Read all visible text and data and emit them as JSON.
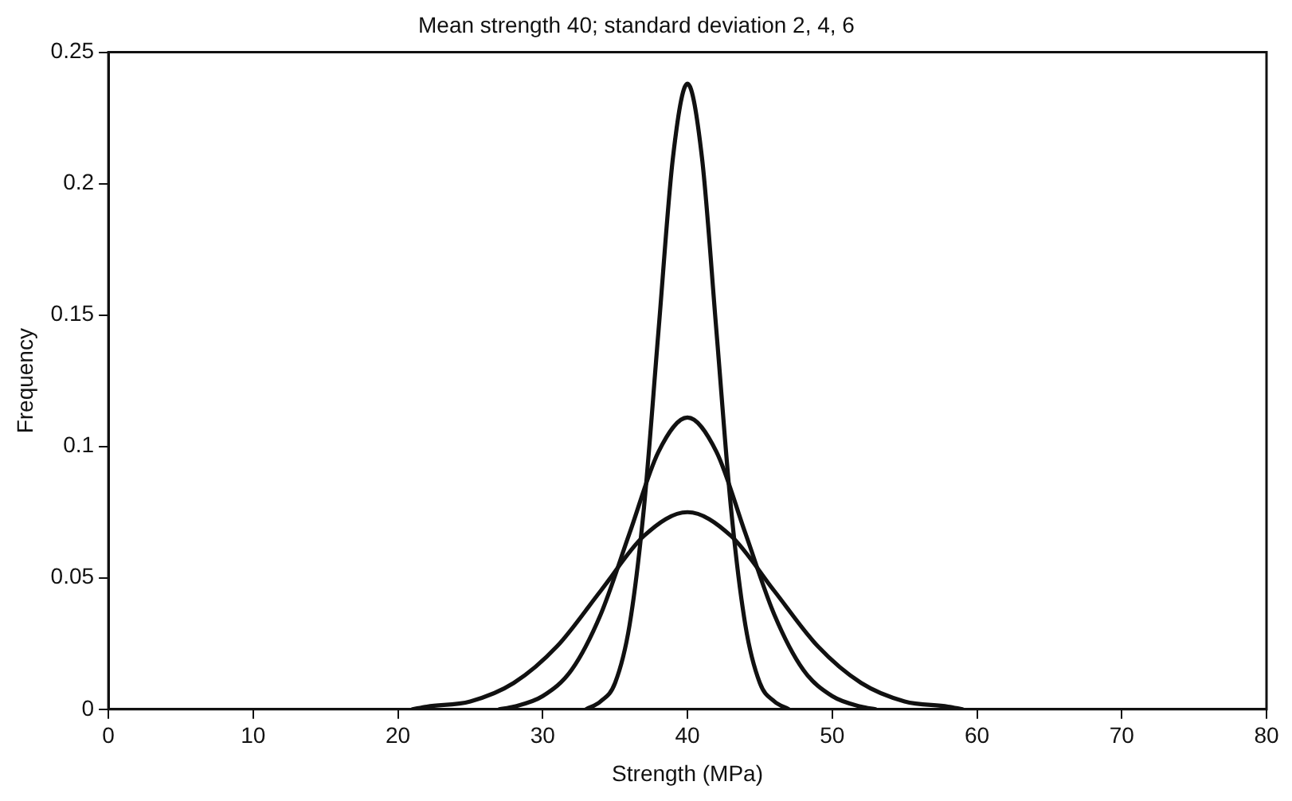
{
  "chart_data": {
    "type": "line",
    "title": "Mean strength 40; standard deviation 2, 4, 6",
    "xlabel": "Strength (MPa)",
    "ylabel": "Frequency",
    "xlim": [
      0,
      80
    ],
    "xticks": [
      0,
      10,
      20,
      30,
      40,
      50,
      60,
      70,
      80
    ],
    "ylim": [
      0,
      0.25
    ],
    "yticks": [
      0,
      0.05,
      0.1,
      0.15,
      0.2,
      0.25
    ],
    "grid": false,
    "legend": false,
    "marker": "none",
    "line_style": "solid",
    "series": [
      {
        "color": "#111111",
        "x": [
          33,
          34,
          35,
          36,
          37,
          38,
          39,
          40,
          41,
          42,
          43,
          44,
          45,
          46,
          47
        ],
        "values": [
          0,
          0.003,
          0.01,
          0.032,
          0.077,
          0.144,
          0.21,
          0.238,
          0.21,
          0.144,
          0.077,
          0.032,
          0.01,
          0.003,
          0
        ]
      },
      {
        "color": "#111111",
        "x": [
          27,
          28,
          30,
          32,
          34,
          36,
          38,
          40,
          42,
          44,
          46,
          48,
          50,
          52,
          53
        ],
        "values": [
          0,
          0.001,
          0.005,
          0.015,
          0.036,
          0.067,
          0.098,
          0.111,
          0.098,
          0.067,
          0.036,
          0.015,
          0.005,
          0.001,
          0
        ]
      },
      {
        "color": "#111111",
        "x": [
          21,
          22,
          25,
          28,
          31,
          34,
          37,
          40,
          43,
          46,
          49,
          52,
          55,
          58,
          59
        ],
        "values": [
          0,
          0.001,
          0.003,
          0.01,
          0.024,
          0.045,
          0.066,
          0.075,
          0.066,
          0.045,
          0.024,
          0.01,
          0.003,
          0.001,
          0
        ]
      }
    ]
  }
}
